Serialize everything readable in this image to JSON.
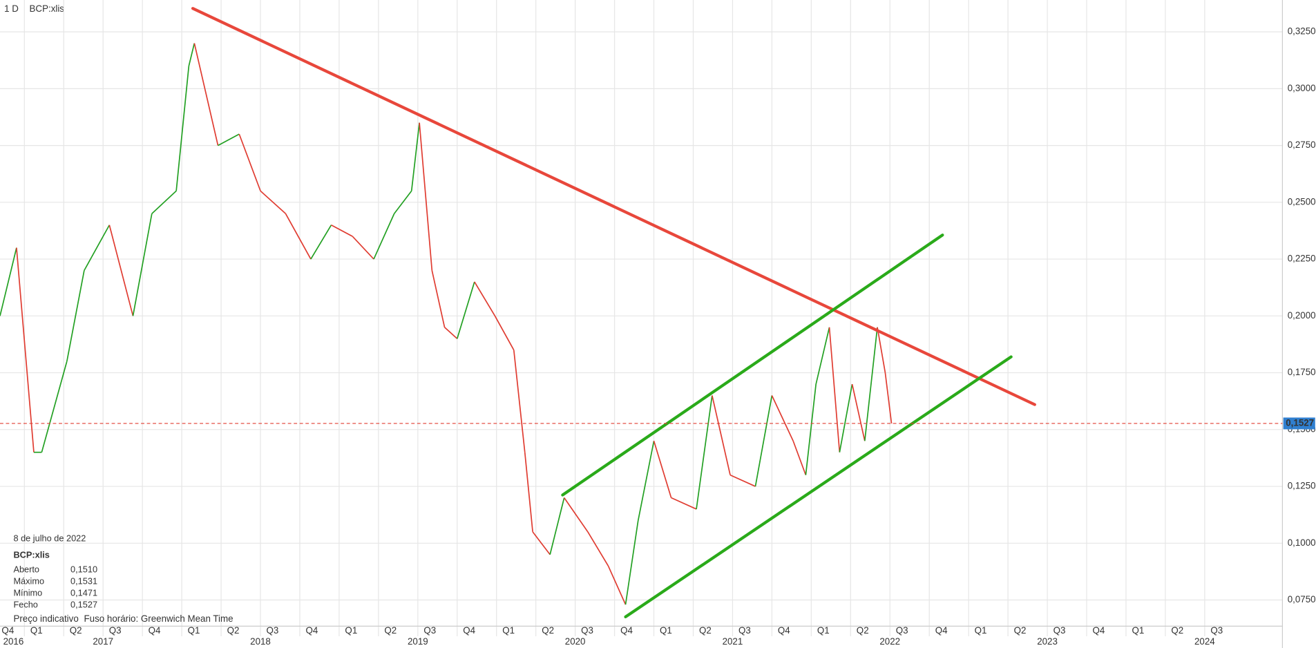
{
  "header": {
    "interval": "1 D",
    "symbol": "BCP:xlis"
  },
  "info_box": {
    "date": "8 de julho de 2022",
    "symbol": "BCP:xlis",
    "rows": [
      {
        "label": "Aberto",
        "value": "0,1510"
      },
      {
        "label": "Máximo",
        "value": "0,1531"
      },
      {
        "label": "Mínimo",
        "value": "0,1471"
      },
      {
        "label": "Fecho",
        "value": "0,1527"
      }
    ]
  },
  "footer": {
    "note": "Preço indicativo",
    "timezone": "Fuso horário: Greenwich Mean Time"
  },
  "chart_data": {
    "type": "line",
    "xlim": [
      2016.845,
      2024.994
    ],
    "ylim": [
      0.0635,
      0.339
    ],
    "yticks": [
      {
        "value": 0.075,
        "label": "0,0750"
      },
      {
        "value": 0.1,
        "label": "0,1000"
      },
      {
        "value": 0.125,
        "label": "0,1250"
      },
      {
        "value": 0.15,
        "label": "0,1500"
      },
      {
        "value": 0.175,
        "label": "0,1750"
      },
      {
        "value": 0.2,
        "label": "0,2000"
      },
      {
        "value": 0.225,
        "label": "0,2250"
      },
      {
        "value": 0.25,
        "label": "0,2500"
      },
      {
        "value": 0.275,
        "label": "0,2750"
      },
      {
        "value": 0.3,
        "label": "0,3000"
      },
      {
        "value": 0.325,
        "label": "0,3250"
      }
    ],
    "xticks": [
      {
        "value": 2016.75,
        "label": "Q4"
      },
      {
        "value": 2017,
        "label": "Q1"
      },
      {
        "value": 2017.25,
        "label": "Q2"
      },
      {
        "value": 2017.5,
        "label": "Q3"
      },
      {
        "value": 2017.75,
        "label": "Q4"
      },
      {
        "value": 2018,
        "label": "Q1"
      },
      {
        "value": 2018.25,
        "label": "Q2"
      },
      {
        "value": 2018.5,
        "label": "Q3"
      },
      {
        "value": 2018.75,
        "label": "Q4"
      },
      {
        "value": 2019,
        "label": "Q1"
      },
      {
        "value": 2019.25,
        "label": "Q2"
      },
      {
        "value": 2019.5,
        "label": "Q3"
      },
      {
        "value": 2019.75,
        "label": "Q4"
      },
      {
        "value": 2020,
        "label": "Q1"
      },
      {
        "value": 2020.25,
        "label": "Q2"
      },
      {
        "value": 2020.5,
        "label": "Q3"
      },
      {
        "value": 2020.75,
        "label": "Q4"
      },
      {
        "value": 2021,
        "label": "Q1"
      },
      {
        "value": 2021.25,
        "label": "Q2"
      },
      {
        "value": 2021.5,
        "label": "Q3"
      },
      {
        "value": 2021.75,
        "label": "Q4"
      },
      {
        "value": 2022,
        "label": "Q1"
      },
      {
        "value": 2022.25,
        "label": "Q2"
      },
      {
        "value": 2022.5,
        "label": "Q3"
      },
      {
        "value": 2022.75,
        "label": "Q4"
      },
      {
        "value": 2023,
        "label": "Q1"
      },
      {
        "value": 2023.25,
        "label": "Q2"
      },
      {
        "value": 2023.5,
        "label": "Q3"
      },
      {
        "value": 2023.75,
        "label": "Q4"
      },
      {
        "value": 2024,
        "label": "Q1"
      },
      {
        "value": 2024.25,
        "label": "Q2"
      },
      {
        "value": 2024.5,
        "label": "Q3"
      }
    ],
    "years": [
      2016,
      2017,
      2018,
      2019,
      2020,
      2021,
      2022,
      2023,
      2024
    ],
    "grid": true,
    "up_color": "#22a022",
    "down_color": "#e03c31",
    "series": [
      {
        "name": "BCP:xlis",
        "x": [
          2016.845,
          2016.95,
          2017.06,
          2017.11,
          2017.27,
          2017.38,
          2017.54,
          2017.69,
          2017.81,
          2017.965,
          2018.045,
          2018.08,
          2018.23,
          2018.365,
          2018.5,
          2018.66,
          2018.82,
          2018.95,
          2019.085,
          2019.22,
          2019.35,
          2019.46,
          2019.51,
          2019.59,
          2019.67,
          2019.75,
          2019.86,
          2019.99,
          2020.11,
          2020.18,
          2020.23,
          2020.34,
          2020.43,
          2020.58,
          2020.71,
          2020.82,
          2020.9,
          2021.0,
          2021.11,
          2021.27,
          2021.37,
          2021.485,
          2021.645,
          2021.75,
          2021.885,
          2021.965,
          2022.03,
          2022.115,
          2022.18,
          2022.26,
          2022.34,
          2022.42,
          2022.47,
          2022.51
        ],
        "values": [
          0.2,
          0.23,
          0.14,
          0.14,
          0.18,
          0.22,
          0.24,
          0.2,
          0.245,
          0.255,
          0.31,
          0.32,
          0.275,
          0.28,
          0.255,
          0.245,
          0.225,
          0.24,
          0.235,
          0.225,
          0.245,
          0.255,
          0.285,
          0.22,
          0.195,
          0.19,
          0.215,
          0.2,
          0.185,
          0.14,
          0.105,
          0.095,
          0.12,
          0.105,
          0.09,
          0.073,
          0.11,
          0.145,
          0.12,
          0.115,
          0.165,
          0.13,
          0.125,
          0.165,
          0.145,
          0.13,
          0.17,
          0.195,
          0.14,
          0.17,
          0.145,
          0.195,
          0.175,
          0.1527
        ]
      }
    ],
    "trendlines": [
      {
        "color": "#e8473b",
        "x": [
          2018.07,
          2023.42
        ],
        "values": [
          0.3353,
          0.161
        ]
      },
      {
        "color": "#2aaa1a",
        "x": [
          2020.42,
          2022.834
        ],
        "values": [
          0.1212,
          0.2356
        ]
      },
      {
        "color": "#2aaa1a",
        "x": [
          2020.82,
          2023.27
        ],
        "values": [
          0.0676,
          0.182
        ]
      }
    ],
    "last_price": {
      "value": 0.1527,
      "label": "0,1527",
      "color": "#e03c31",
      "badge_color": "#2f7fd0"
    }
  }
}
